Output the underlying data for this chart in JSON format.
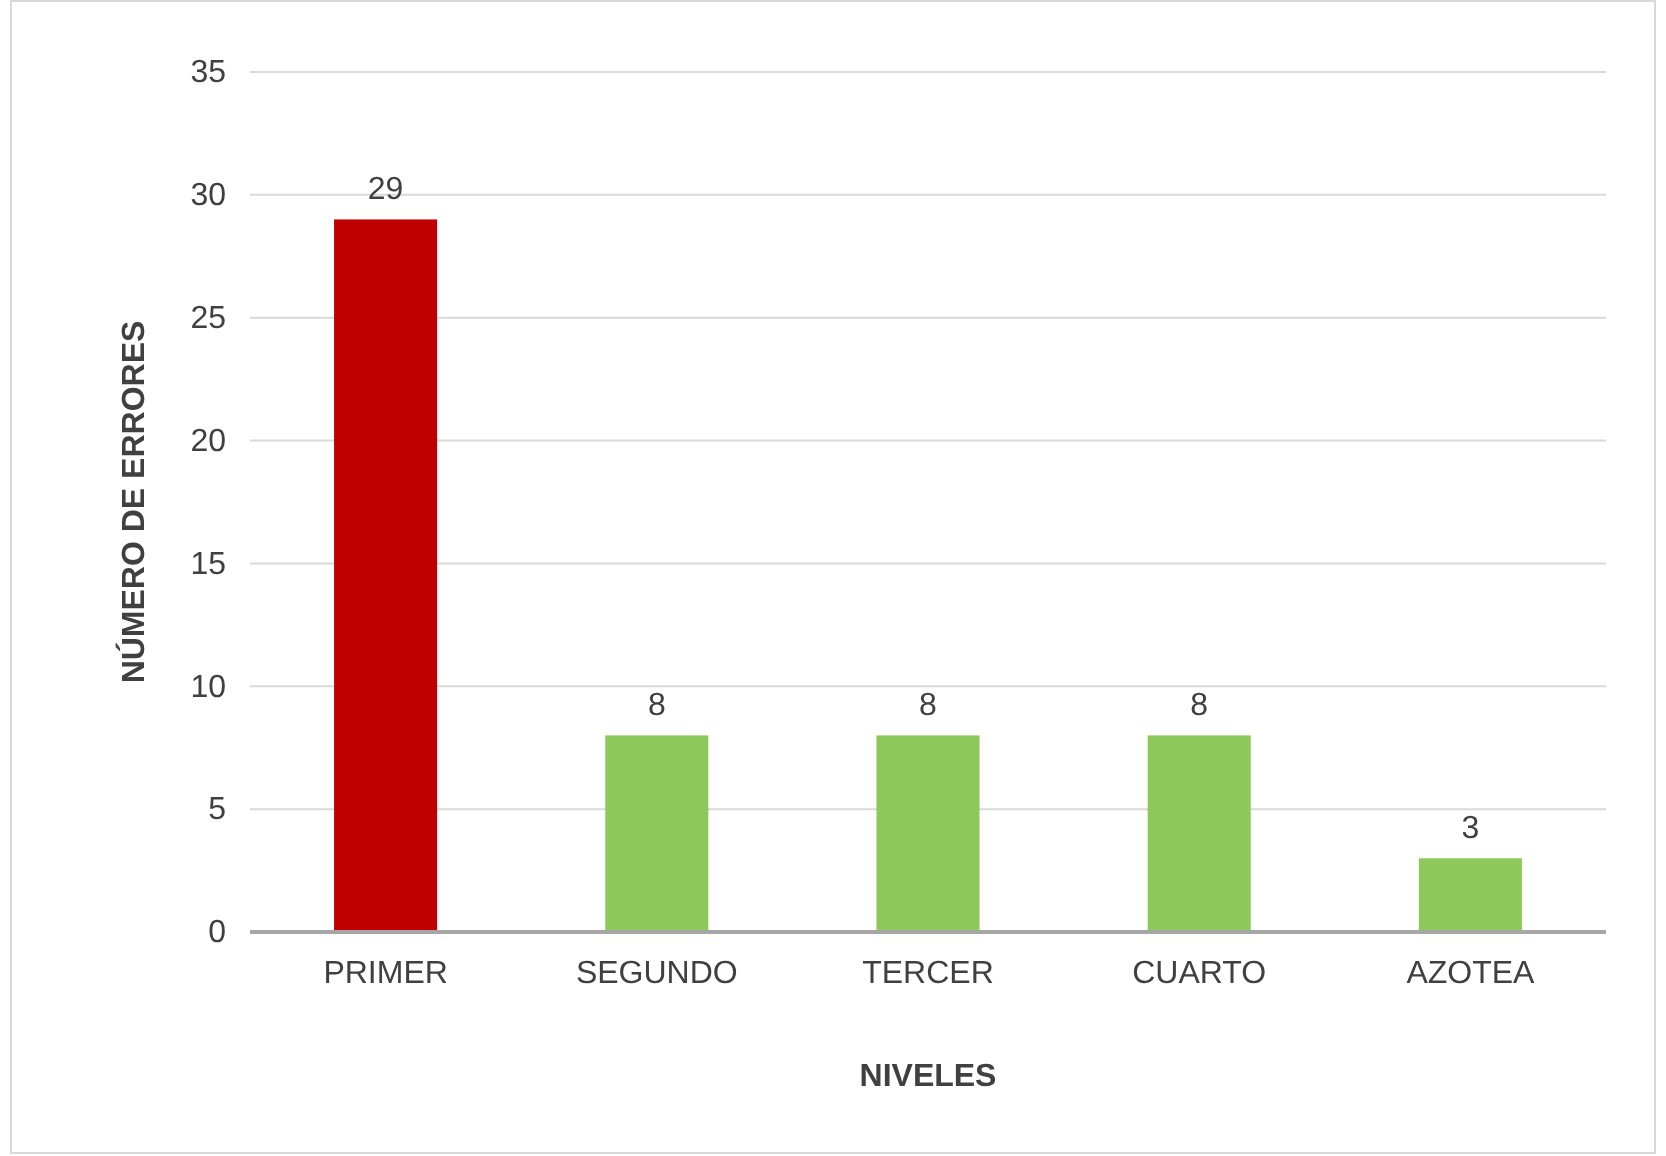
{
  "chart_data": {
    "type": "bar",
    "xlabel": "NIVELES",
    "ylabel": "NÚMERO DE ERRORES",
    "categories": [
      "PRIMER",
      "SEGUNDO",
      "TERCER",
      "CUARTO",
      "AZOTEA"
    ],
    "values": [
      29,
      8,
      8,
      8,
      3
    ],
    "colors": [
      "#c00000",
      "#8cc85a",
      "#8cc85a",
      "#8cc85a",
      "#8cc85a"
    ],
    "ylim": [
      0,
      35
    ],
    "yticks": [
      0,
      5,
      10,
      15,
      20,
      25,
      30,
      35
    ],
    "grid": "y",
    "data_labels": true
  }
}
